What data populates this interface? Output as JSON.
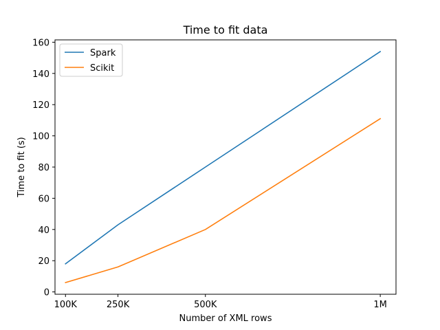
{
  "chart_data": {
    "type": "line",
    "title": "Time to fit data",
    "xlabel": "Number of XML rows",
    "ylabel": "Time to fit (s)",
    "x": [
      100000,
      250000,
      500000,
      1000000
    ],
    "xticks": [
      100000,
      250000,
      500000,
      1000000
    ],
    "xticklabels": [
      "100K",
      "250K",
      "500K",
      "1M"
    ],
    "xlim": [
      70000,
      1045000
    ],
    "yticks": [
      0,
      20,
      40,
      60,
      80,
      100,
      120,
      140,
      160
    ],
    "yticklabels": [
      "0",
      "20",
      "40",
      "60",
      "80",
      "100",
      "120",
      "140",
      "160"
    ],
    "ylim": [
      -1.5,
      161.5
    ],
    "grid": false,
    "legend_position": "top-left",
    "series": [
      {
        "name": "Spark",
        "color": "#1f77b4",
        "values": [
          18,
          43,
          80,
          154
        ]
      },
      {
        "name": "Scikit",
        "color": "#ff7f0e",
        "values": [
          6,
          16,
          40,
          111
        ]
      }
    ]
  }
}
